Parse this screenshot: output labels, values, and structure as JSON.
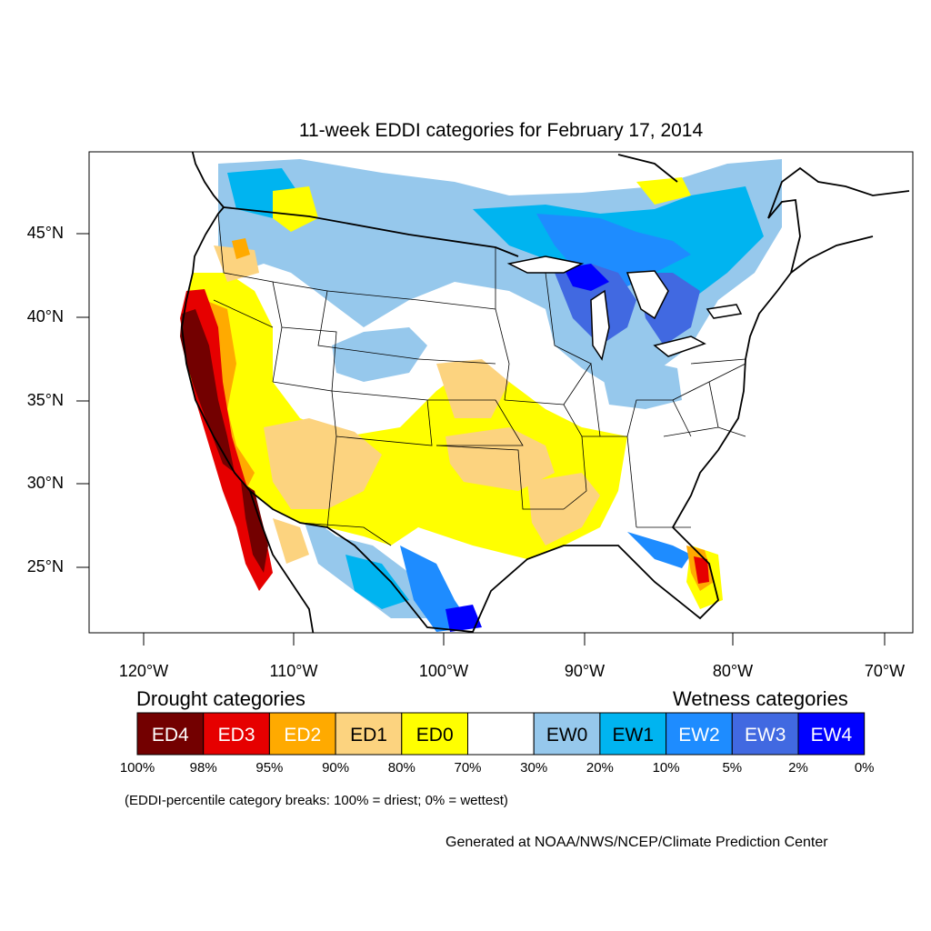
{
  "title": "11-week EDDI categories for February 17, 2014",
  "lat_labels": [
    "45°N",
    "40°N",
    "35°N",
    "30°N",
    "25°N"
  ],
  "lon_labels": [
    "120°W",
    "110°W",
    "100°W",
    "90°W",
    "80°W",
    "70°W"
  ],
  "legend": {
    "drought_heading": "Drought categories",
    "wetness_heading": "Wetness categories",
    "categories": [
      {
        "label": "ED4",
        "color": "#730000",
        "text_color": "#ffffff"
      },
      {
        "label": "ED3",
        "color": "#e60000",
        "text_color": "#ffffff"
      },
      {
        "label": "ED2",
        "color": "#ffaa00",
        "text_color": "#ffffff"
      },
      {
        "label": "ED1",
        "color": "#fcd37f",
        "text_color": "#000000"
      },
      {
        "label": "ED0",
        "color": "#ffff00",
        "text_color": "#000000"
      },
      {
        "label": "",
        "color": "#ffffff",
        "text_color": "#000000"
      },
      {
        "label": "EW0",
        "color": "#96c8ec",
        "text_color": "#000000"
      },
      {
        "label": "EW1",
        "color": "#00b4f0",
        "text_color": "#000000"
      },
      {
        "label": "EW2",
        "color": "#1e8cff",
        "text_color": "#ffffff"
      },
      {
        "label": "EW3",
        "color": "#4169e1",
        "text_color": "#ffffff"
      },
      {
        "label": "EW4",
        "color": "#0000ff",
        "text_color": "#ffffff"
      }
    ],
    "breaks": [
      "100%",
      "98%",
      "95%",
      "90%",
      "80%",
      "70%",
      "30%",
      "20%",
      "10%",
      "5%",
      "2%",
      "0%"
    ]
  },
  "note": "(EDDI-percentile category breaks: 100% = driest; 0% = wettest)",
  "credit": "Generated at NOAA/NWS/NCEP/Climate Prediction Center"
}
